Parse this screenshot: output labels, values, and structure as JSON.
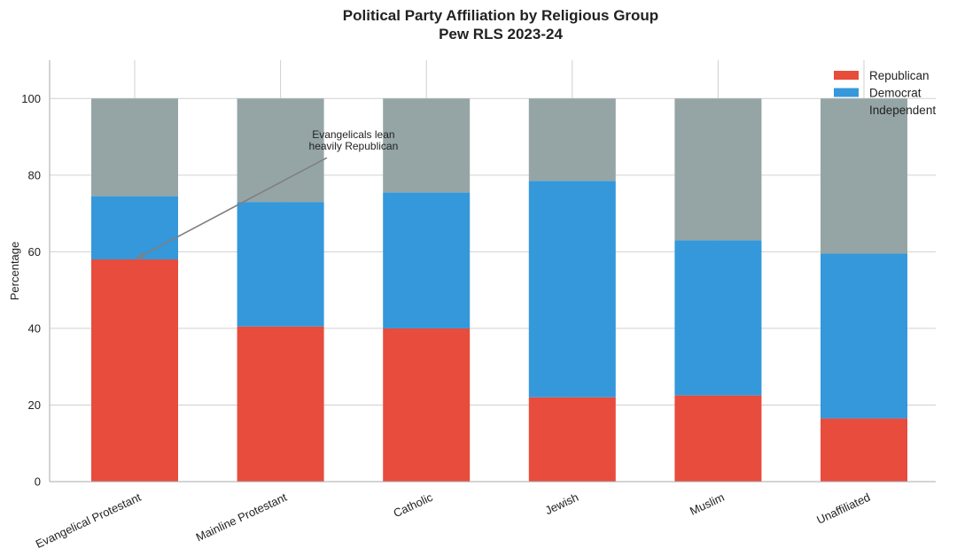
{
  "chart_data": {
    "type": "bar",
    "stacked": true,
    "title": "Political Party Affiliation by Religious Group",
    "subtitle": "Pew RLS 2023-24",
    "xlabel": "",
    "ylabel": "Percentage",
    "ylim": [
      0,
      110
    ],
    "yticks": [
      0,
      20,
      40,
      60,
      80,
      100
    ],
    "grid": true,
    "legend_position": "top-right",
    "categories": [
      "Evangelical Protestant",
      "Mainline Protestant",
      "Catholic",
      "Jewish",
      "Muslim",
      "Unaffiliated"
    ],
    "series": [
      {
        "name": "Republican",
        "color": "#e74c3c",
        "values": [
          58,
          40.5,
          40,
          22,
          22.5,
          16.5
        ]
      },
      {
        "name": "Democrat",
        "color": "#3498db",
        "values": [
          16.5,
          32.5,
          35.5,
          56.5,
          40.5,
          43
        ]
      },
      {
        "name": "Independent",
        "color": "#95a5a6",
        "values": [
          25.5,
          27,
          24.5,
          21.5,
          37,
          40.5
        ]
      }
    ],
    "annotation": {
      "lines": [
        "Evangelicals lean",
        "heavily Republican"
      ],
      "target_category": "Evangelical Protestant",
      "target_value": 58,
      "text_category_offset": 1.5,
      "text_value": 85
    }
  }
}
